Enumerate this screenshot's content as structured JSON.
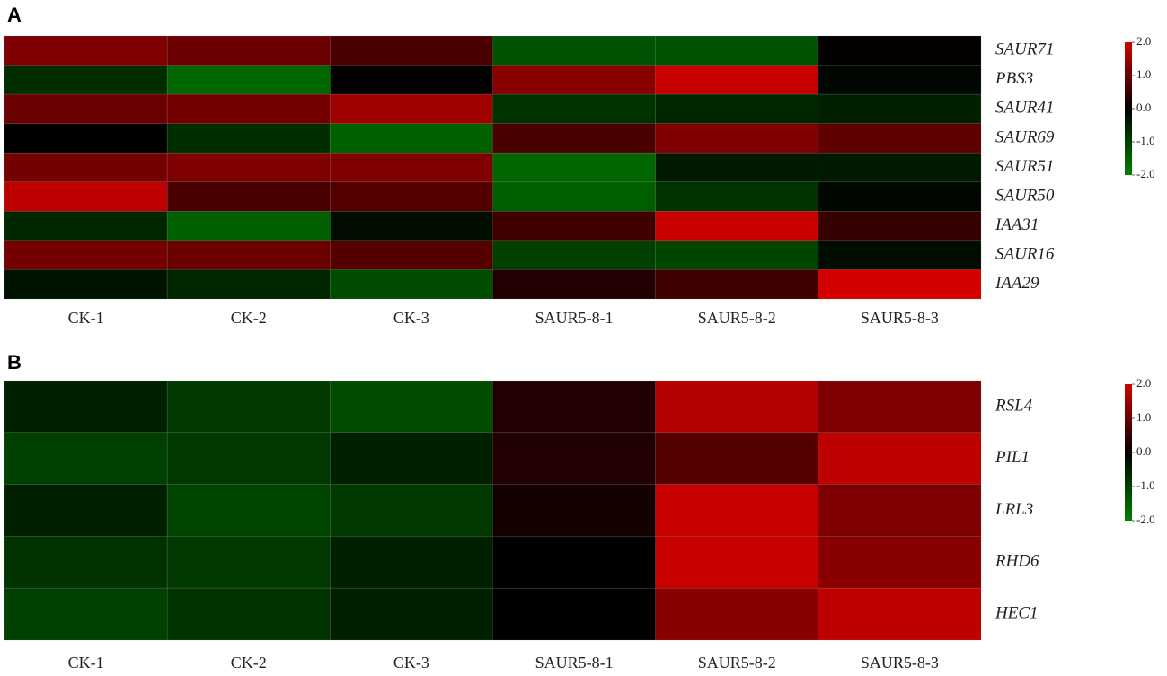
{
  "chart_data": [
    {
      "type": "heatmap",
      "panel": "A",
      "x": [
        "CK-1",
        "CK-2",
        "CK-3",
        "SAUR5-8-1",
        "SAUR5-8-2",
        "SAUR5-8-3"
      ],
      "y": [
        "SAUR71",
        "PBS3",
        "SAUR41",
        "SAUR69",
        "SAUR51",
        "SAUR50",
        "IAA31",
        "SAUR16",
        "IAA29"
      ],
      "values": [
        [
          1.2,
          1.0,
          0.7,
          -1.3,
          -1.3,
          0.05
        ],
        [
          -0.7,
          -1.6,
          0.0,
          1.3,
          1.9,
          -0.1
        ],
        [
          1.0,
          1.1,
          1.5,
          -0.8,
          -0.6,
          -0.5
        ],
        [
          0.0,
          -0.7,
          -1.5,
          0.7,
          1.2,
          0.9
        ],
        [
          1.1,
          1.2,
          1.2,
          -1.6,
          -0.4,
          -0.4
        ],
        [
          1.8,
          0.7,
          0.8,
          -1.5,
          -0.8,
          -0.1
        ],
        [
          -0.6,
          -1.5,
          -0.2,
          0.6,
          1.9,
          0.5
        ],
        [
          1.1,
          1.0,
          0.8,
          -1.0,
          -1.1,
          -0.2
        ],
        [
          -0.3,
          -0.6,
          -1.2,
          0.3,
          0.6,
          2.0
        ]
      ],
      "colorlim": [
        -2,
        2
      ],
      "colors": [
        "#008000",
        "#000000",
        "#d40000"
      ],
      "colorticks": [
        {
          "value": 2,
          "label": "2.0"
        },
        {
          "value": 1,
          "label": "1.0"
        },
        {
          "value": 0,
          "label": "0.0"
        },
        {
          "value": -1,
          "label": "-1.0"
        },
        {
          "value": -2,
          "label": "-2.0"
        }
      ]
    },
    {
      "type": "heatmap",
      "panel": "B",
      "x": [
        "CK-1",
        "CK-2",
        "CK-3",
        "SAUR5-8-1",
        "SAUR5-8-2",
        "SAUR5-8-3"
      ],
      "y": [
        "RSL4",
        "PIL1",
        "LRL3",
        "RHD6",
        "HEC1"
      ],
      "values": [
        [
          -0.5,
          -0.9,
          -1.2,
          0.3,
          1.7,
          1.2
        ],
        [
          -1.0,
          -0.9,
          -0.5,
          0.3,
          0.8,
          1.8
        ],
        [
          -0.5,
          -1.1,
          -0.9,
          0.2,
          1.9,
          1.2
        ],
        [
          -0.8,
          -0.9,
          -0.5,
          0.0,
          1.9,
          1.3
        ],
        [
          -1.0,
          -0.8,
          -0.5,
          0.0,
          1.3,
          1.8
        ]
      ],
      "colorlim": [
        -2,
        2
      ],
      "colors": [
        "#008000",
        "#000000",
        "#d40000"
      ],
      "colorticks": [
        {
          "value": 2,
          "label": "2.0"
        },
        {
          "value": 1,
          "label": "1.0"
        },
        {
          "value": 0,
          "label": "0.0"
        },
        {
          "value": -1,
          "label": "-1.0"
        },
        {
          "value": -2,
          "label": "-2.0"
        }
      ]
    }
  ]
}
